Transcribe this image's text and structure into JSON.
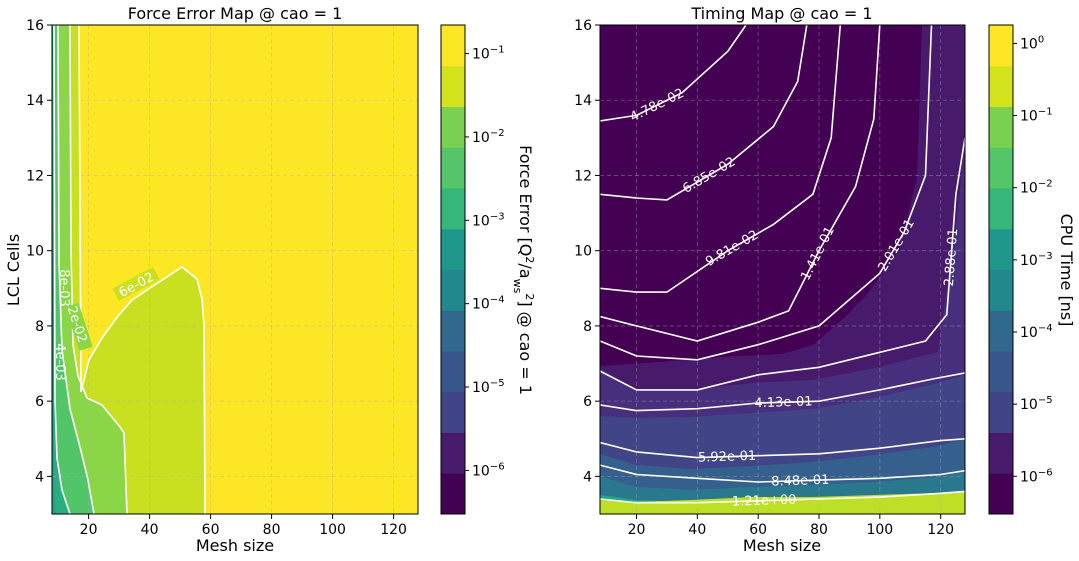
{
  "chart_data": [
    {
      "type": "contour",
      "title": "Force Error Map @ cao = 1",
      "xlabel": "Mesh size",
      "ylabel": "LCL Cells",
      "xlim": [
        8,
        128
      ],
      "ylim": [
        3,
        16
      ],
      "xticks": [
        20,
        40,
        60,
        80,
        100,
        120
      ],
      "yticks": [
        4,
        6,
        8,
        10,
        12,
        14,
        16
      ],
      "grid": true,
      "colormap": "viridis",
      "colorbar": {
        "label": "Force Error  [Q²/a²_ws] @ cao = 1",
        "scale": "log",
        "range": [
          3e-07,
          0.22
        ],
        "ticks": [
          "10^-6",
          "10^-5",
          "10^-4",
          "10^-3",
          "10^-2",
          "10^-1"
        ]
      },
      "levels": [
        {
          "value": 0.02,
          "label": "2e-02",
          "color": "#8bd646"
        },
        {
          "value": 0.06,
          "label": "6e-02",
          "color": "#c8e020"
        },
        {
          "value": 0.2,
          "label": "",
          "color": "#fde725"
        }
      ],
      "contour_labels": [
        "6e-02",
        "2e-02",
        "8e-03",
        "4e-03"
      ],
      "contour_lines": [
        {
          "label": "6e-02",
          "points": [
            [
              59.5,
              3
            ],
            [
              59,
              7
            ],
            [
              58.5,
              8.3
            ],
            [
              57,
              8.8
            ],
            [
              52,
              9.5
            ],
            [
              31,
              8.6
            ],
            [
              22,
              9.6
            ],
            [
              17,
              10.2
            ],
            [
              13.5,
              11.0
            ],
            [
              12.5,
              16
            ]
          ]
        },
        {
          "label": "2e-02",
          "points": [
            [
              33,
              3
            ],
            [
              32.5,
              4.9
            ],
            [
              31,
              5.6
            ],
            [
              25,
              6.4
            ],
            [
              20,
              7.0
            ],
            [
              17,
              7.9
            ],
            [
              15.5,
              9.3
            ],
            [
              15,
              12
            ],
            [
              15,
              16
            ]
          ]
        },
        {
          "label": "",
          "points": [
            [
              21.5,
              3
            ],
            [
              18,
              4.0
            ],
            [
              14.5,
              5.5
            ],
            [
              12,
              7.0
            ],
            [
              11,
              9
            ],
            [
              10.5,
              12
            ],
            [
              10,
              16
            ]
          ]
        },
        {
          "label": "",
          "points": [
            [
              14.5,
              3
            ],
            [
              12,
              4.3
            ],
            [
              10,
              6
            ],
            [
              9.3,
              9
            ],
            [
              9,
              16
            ]
          ]
        }
      ]
    },
    {
      "type": "contour",
      "title": "Timing Map @ cao = 1",
      "xlabel": "Mesh size",
      "ylabel": "",
      "xlim": [
        8,
        128
      ],
      "ylim": [
        3,
        16
      ],
      "xticks": [
        20,
        40,
        60,
        80,
        100,
        120
      ],
      "yticks": [
        4,
        6,
        8,
        10,
        12,
        14,
        16
      ],
      "grid": true,
      "colormap": "viridis",
      "colorbar": {
        "label": "CPU Time [ns]",
        "scale": "log",
        "range": [
          3e-07,
          1.8
        ],
        "ticks": [
          "10^-6",
          "10^-5",
          "10^-4",
          "10^-3",
          "10^-2",
          "10^-1",
          "10^0"
        ]
      },
      "contour_lines": [
        {
          "label": "4.78e-02",
          "points": [
            [
              8,
              13.45
            ],
            [
              20,
              13.6
            ],
            [
              35,
              14.2
            ],
            [
              50,
              15.3
            ],
            [
              56,
              16
            ]
          ]
        },
        {
          "label": "6.85e-02",
          "points": [
            [
              8,
              11.5
            ],
            [
              20,
              11.4
            ],
            [
              30,
              11.35
            ],
            [
              50,
              12.3
            ],
            [
              65,
              13.3
            ],
            [
              73,
              14.5
            ],
            [
              76,
              16
            ]
          ]
        },
        {
          "label": "9.81e-02",
          "points": [
            [
              8,
              9.0
            ],
            [
              20,
              8.9
            ],
            [
              30,
              8.9
            ],
            [
              50,
              10.0
            ],
            [
              65,
              10.7
            ],
            [
              78,
              11.5
            ],
            [
              84,
              13.0
            ],
            [
              87,
              16
            ]
          ]
        },
        {
          "label": "1.41e-01",
          "points": [
            [
              8,
              8.25
            ],
            [
              20,
              8.0
            ],
            [
              40,
              7.6
            ],
            [
              60,
              8.1
            ],
            [
              70,
              8.4
            ],
            [
              80,
              10.0
            ],
            [
              92,
              11.7
            ],
            [
              98,
              13.5
            ],
            [
              100,
              16
            ]
          ]
        },
        {
          "label": "2.01e-01",
          "points": [
            [
              8,
              7.6
            ],
            [
              20,
              7.2
            ],
            [
              40,
              7.1
            ],
            [
              60,
              7.5
            ],
            [
              80,
              8.0
            ],
            [
              100,
              9.4
            ],
            [
              108,
              10.5
            ],
            [
              115,
              12.0
            ],
            [
              117,
              16
            ]
          ]
        },
        {
          "label": "2.88e-01",
          "points": [
            [
              8,
              6.8
            ],
            [
              20,
              6.3
            ],
            [
              40,
              6.3
            ],
            [
              60,
              6.7
            ],
            [
              80,
              6.9
            ],
            [
              100,
              7.3
            ],
            [
              115,
              7.6
            ],
            [
              122,
              8.3
            ],
            [
              125,
              11.5
            ],
            [
              128,
              13.0
            ]
          ]
        },
        {
          "label": "4.13e-01",
          "points": [
            [
              8,
              5.9
            ],
            [
              20,
              5.75
            ],
            [
              40,
              5.8
            ],
            [
              60,
              5.95
            ],
            [
              80,
              6.0
            ],
            [
              100,
              6.3
            ],
            [
              118,
              6.6
            ],
            [
              128,
              6.75
            ]
          ]
        },
        {
          "label": "5.92e-01",
          "points": [
            [
              8,
              4.9
            ],
            [
              20,
              4.65
            ],
            [
              40,
              4.5
            ],
            [
              60,
              4.55
            ],
            [
              80,
              4.6
            ],
            [
              100,
              4.75
            ],
            [
              120,
              4.95
            ],
            [
              128,
              5.0
            ]
          ]
        },
        {
          "label": "8.48e-01",
          "points": [
            [
              8,
              4.3
            ],
            [
              20,
              4.05
            ],
            [
              40,
              3.95
            ],
            [
              60,
              3.85
            ],
            [
              80,
              3.9
            ],
            [
              100,
              3.95
            ],
            [
              120,
              4.05
            ],
            [
              128,
              4.15
            ]
          ]
        },
        {
          "label": "1.21e+00",
          "points": [
            [
              8,
              3.4
            ],
            [
              20,
              3.3
            ],
            [
              40,
              3.3
            ],
            [
              60,
              3.35
            ],
            [
              80,
              3.4
            ],
            [
              100,
              3.45
            ],
            [
              120,
              3.55
            ],
            [
              128,
              3.6
            ]
          ]
        }
      ]
    }
  ]
}
